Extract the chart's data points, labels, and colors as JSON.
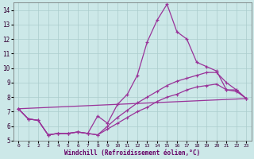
{
  "xlabel": "Windchill (Refroidissement éolien,°C)",
  "background_color": "#cce8e8",
  "grid_color": "#aacccc",
  "line_color": "#993399",
  "xlim": [
    -0.5,
    23.5
  ],
  "ylim": [
    5,
    14.5
  ],
  "yticks": [
    5,
    6,
    7,
    8,
    9,
    10,
    11,
    12,
    13,
    14
  ],
  "xticks": [
    0,
    1,
    2,
    3,
    4,
    5,
    6,
    7,
    8,
    9,
    10,
    11,
    12,
    13,
    14,
    15,
    16,
    17,
    18,
    19,
    20,
    21,
    22,
    23
  ],
  "line1_x": [
    0,
    1,
    2,
    3,
    4,
    5,
    6,
    7,
    8,
    9,
    10,
    11,
    12,
    13,
    14,
    15,
    16,
    17,
    18,
    19,
    20,
    21,
    22,
    23
  ],
  "line1_y": [
    7.2,
    6.5,
    6.4,
    5.4,
    5.5,
    5.5,
    5.6,
    5.5,
    6.7,
    6.2,
    7.5,
    8.2,
    9.5,
    11.8,
    13.3,
    14.4,
    12.5,
    12.0,
    10.4,
    10.1,
    9.8,
    8.5,
    8.4,
    7.9
  ],
  "line2_x": [
    0,
    1,
    2,
    3,
    4,
    5,
    6,
    7,
    8,
    9,
    10,
    11,
    12,
    13,
    14,
    15,
    16,
    17,
    18,
    19,
    20,
    21,
    22,
    23
  ],
  "line2_y": [
    7.2,
    6.5,
    6.4,
    5.4,
    5.5,
    5.5,
    5.6,
    5.5,
    5.4,
    6.0,
    6.6,
    7.1,
    7.6,
    8.0,
    8.4,
    8.8,
    9.1,
    9.3,
    9.5,
    9.7,
    9.7,
    9.0,
    8.5,
    7.9
  ],
  "line3_x": [
    0,
    1,
    2,
    3,
    4,
    5,
    6,
    7,
    8,
    9,
    10,
    11,
    12,
    13,
    14,
    15,
    16,
    17,
    18,
    19,
    20,
    21,
    22,
    23
  ],
  "line3_y": [
    7.2,
    6.5,
    6.4,
    5.4,
    5.5,
    5.5,
    5.6,
    5.5,
    5.4,
    5.8,
    6.2,
    6.6,
    7.0,
    7.3,
    7.7,
    8.0,
    8.2,
    8.5,
    8.7,
    8.8,
    8.9,
    8.5,
    8.5,
    7.9
  ],
  "line4_x": [
    0,
    23
  ],
  "line4_y": [
    7.2,
    7.9
  ]
}
